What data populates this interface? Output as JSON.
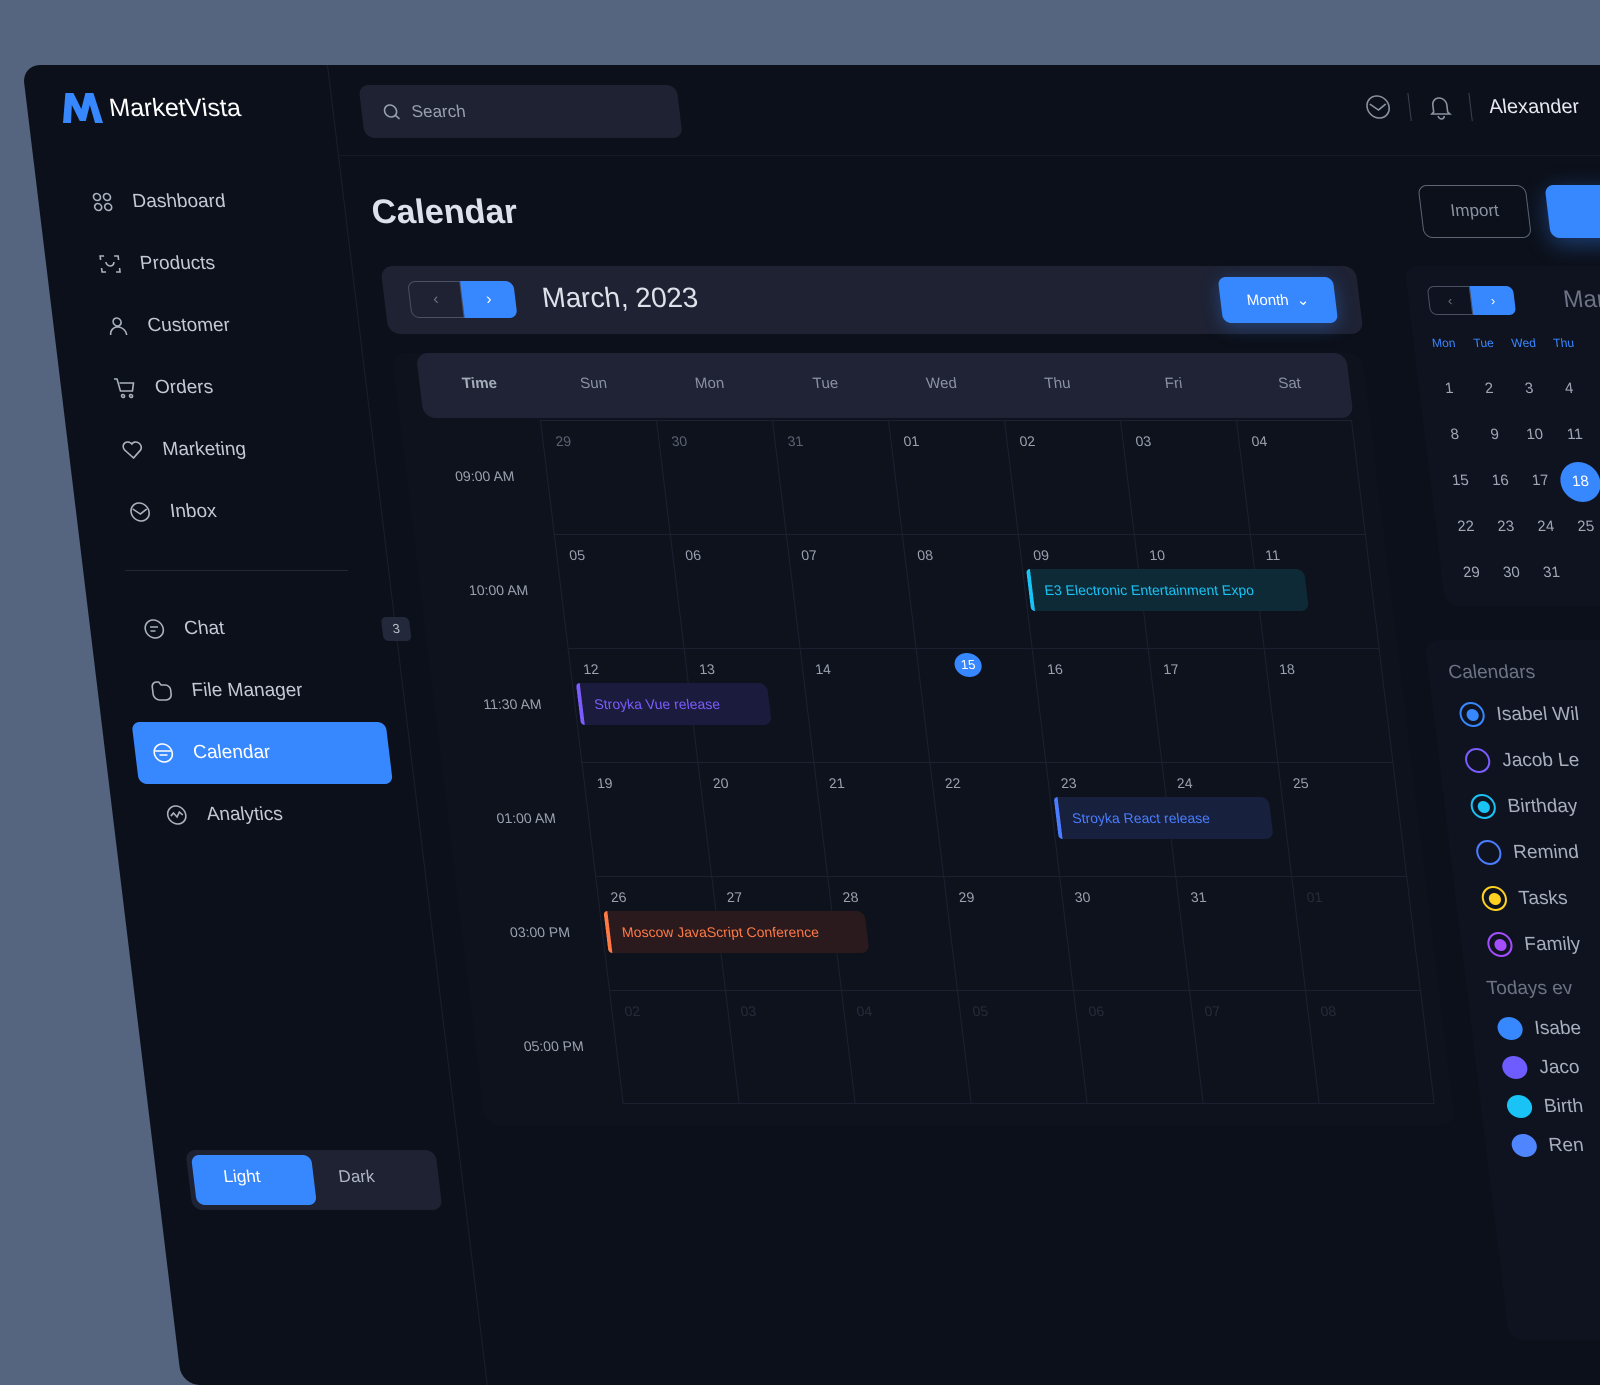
{
  "app": {
    "name": "MarketVista",
    "brand_color": "#3787ff"
  },
  "sidebar": {
    "items": [
      {
        "label": "Dashboard",
        "icon": "grid-icon"
      },
      {
        "label": "Products",
        "icon": "scan-icon"
      },
      {
        "label": "Customer",
        "icon": "user-icon"
      },
      {
        "label": "Orders",
        "icon": "cart-icon"
      },
      {
        "label": "Marketing",
        "icon": "heart-icon"
      },
      {
        "label": "Inbox",
        "icon": "mail-icon"
      }
    ],
    "items2": [
      {
        "label": "Chat",
        "icon": "chat-icon",
        "badge": "3"
      },
      {
        "label": "File Manager",
        "icon": "folder-icon"
      },
      {
        "label": "Calendar",
        "icon": "calendar-icon",
        "active": true
      },
      {
        "label": "Analytics",
        "icon": "analytics-icon"
      }
    ],
    "theme_toggle": {
      "light": "Light",
      "dark": "Dark",
      "selected": "Light"
    }
  },
  "header": {
    "search_placeholder": "Search",
    "user_name": "Alexander"
  },
  "page": {
    "title": "Calendar",
    "import_label": "Import"
  },
  "toolbar": {
    "month_title": "March, 2023",
    "view_label": "Month"
  },
  "grid": {
    "headers": [
      "Time",
      "Sun",
      "Mon",
      "Tue",
      "Wed",
      "Thu",
      "Fri",
      "Sat"
    ],
    "times": [
      "09:00 AM",
      "10:00 AM",
      "11:30 AM",
      "01:00 AM",
      "03:00 PM",
      "05:00 PM"
    ],
    "weeks": [
      [
        "29",
        "30",
        "31",
        "01",
        "02",
        "03",
        "04"
      ],
      [
        "05",
        "06",
        "07",
        "08",
        "09",
        "10",
        "11"
      ],
      [
        "12",
        "13",
        "14",
        "15",
        "16",
        "17",
        "18"
      ],
      [
        "19",
        "20",
        "21",
        "22",
        "23",
        "24",
        "25"
      ],
      [
        "26",
        "27",
        "28",
        "29",
        "30",
        "31",
        "01"
      ],
      [
        "02",
        "03",
        "04",
        "05",
        "06",
        "07",
        "08"
      ]
    ],
    "today": "15",
    "events": [
      {
        "title": "E3 Electronic Entertainment Expo",
        "week": 1,
        "day": 4,
        "span": 2.4,
        "color": "#19c3f5",
        "bg": "#0f2a37"
      },
      {
        "title": "Stroyka Vue release",
        "week": 2,
        "day": 0,
        "span": 1.65,
        "color": "#7b5cff",
        "bg": "#1b1c3d"
      },
      {
        "title": "Stroyka React release",
        "week": 3,
        "day": 4,
        "span": 1.85,
        "color": "#4a7dff",
        "bg": "#17203d"
      },
      {
        "title": "Moscow JavaScript Conference",
        "week": 4,
        "day": 0,
        "span": 2.25,
        "color": "#ff7a45",
        "bg": "#2a1a1d"
      }
    ]
  },
  "mini_calendar": {
    "title": "March",
    "weekdays": [
      "Mon",
      "Tue",
      "Wed",
      "Thu"
    ],
    "weeks": [
      [
        "1",
        "2",
        "3",
        "4"
      ],
      [
        "8",
        "9",
        "10",
        "11"
      ],
      [
        "15",
        "16",
        "17",
        "18"
      ],
      [
        "22",
        "23",
        "24",
        "25"
      ],
      [
        "29",
        "30",
        "31"
      ]
    ],
    "selected": "18"
  },
  "calendars": {
    "title": "Calendars",
    "items": [
      {
        "label": "Isabel Wil",
        "color": "#3787ff",
        "checked": true
      },
      {
        "label": "Jacob Le",
        "color": "#7b5cff",
        "checked": false
      },
      {
        "label": "Birthday",
        "color": "#19c3f5",
        "checked": true
      },
      {
        "label": "Remind",
        "color": "#4a7dff",
        "checked": false
      },
      {
        "label": "Tasks",
        "color": "#ffd21f",
        "checked": true
      },
      {
        "label": "Family",
        "color": "#a34dff",
        "checked": true
      }
    ],
    "todays_title": "Todays ev",
    "todays": [
      {
        "label": "Isabe",
        "color": "#3787ff"
      },
      {
        "label": "Jaco",
        "color": "#6f5cff"
      },
      {
        "label": "Birth",
        "color": "#19c3f5"
      },
      {
        "label": "Ren",
        "color": "#4f86ff"
      }
    ]
  }
}
